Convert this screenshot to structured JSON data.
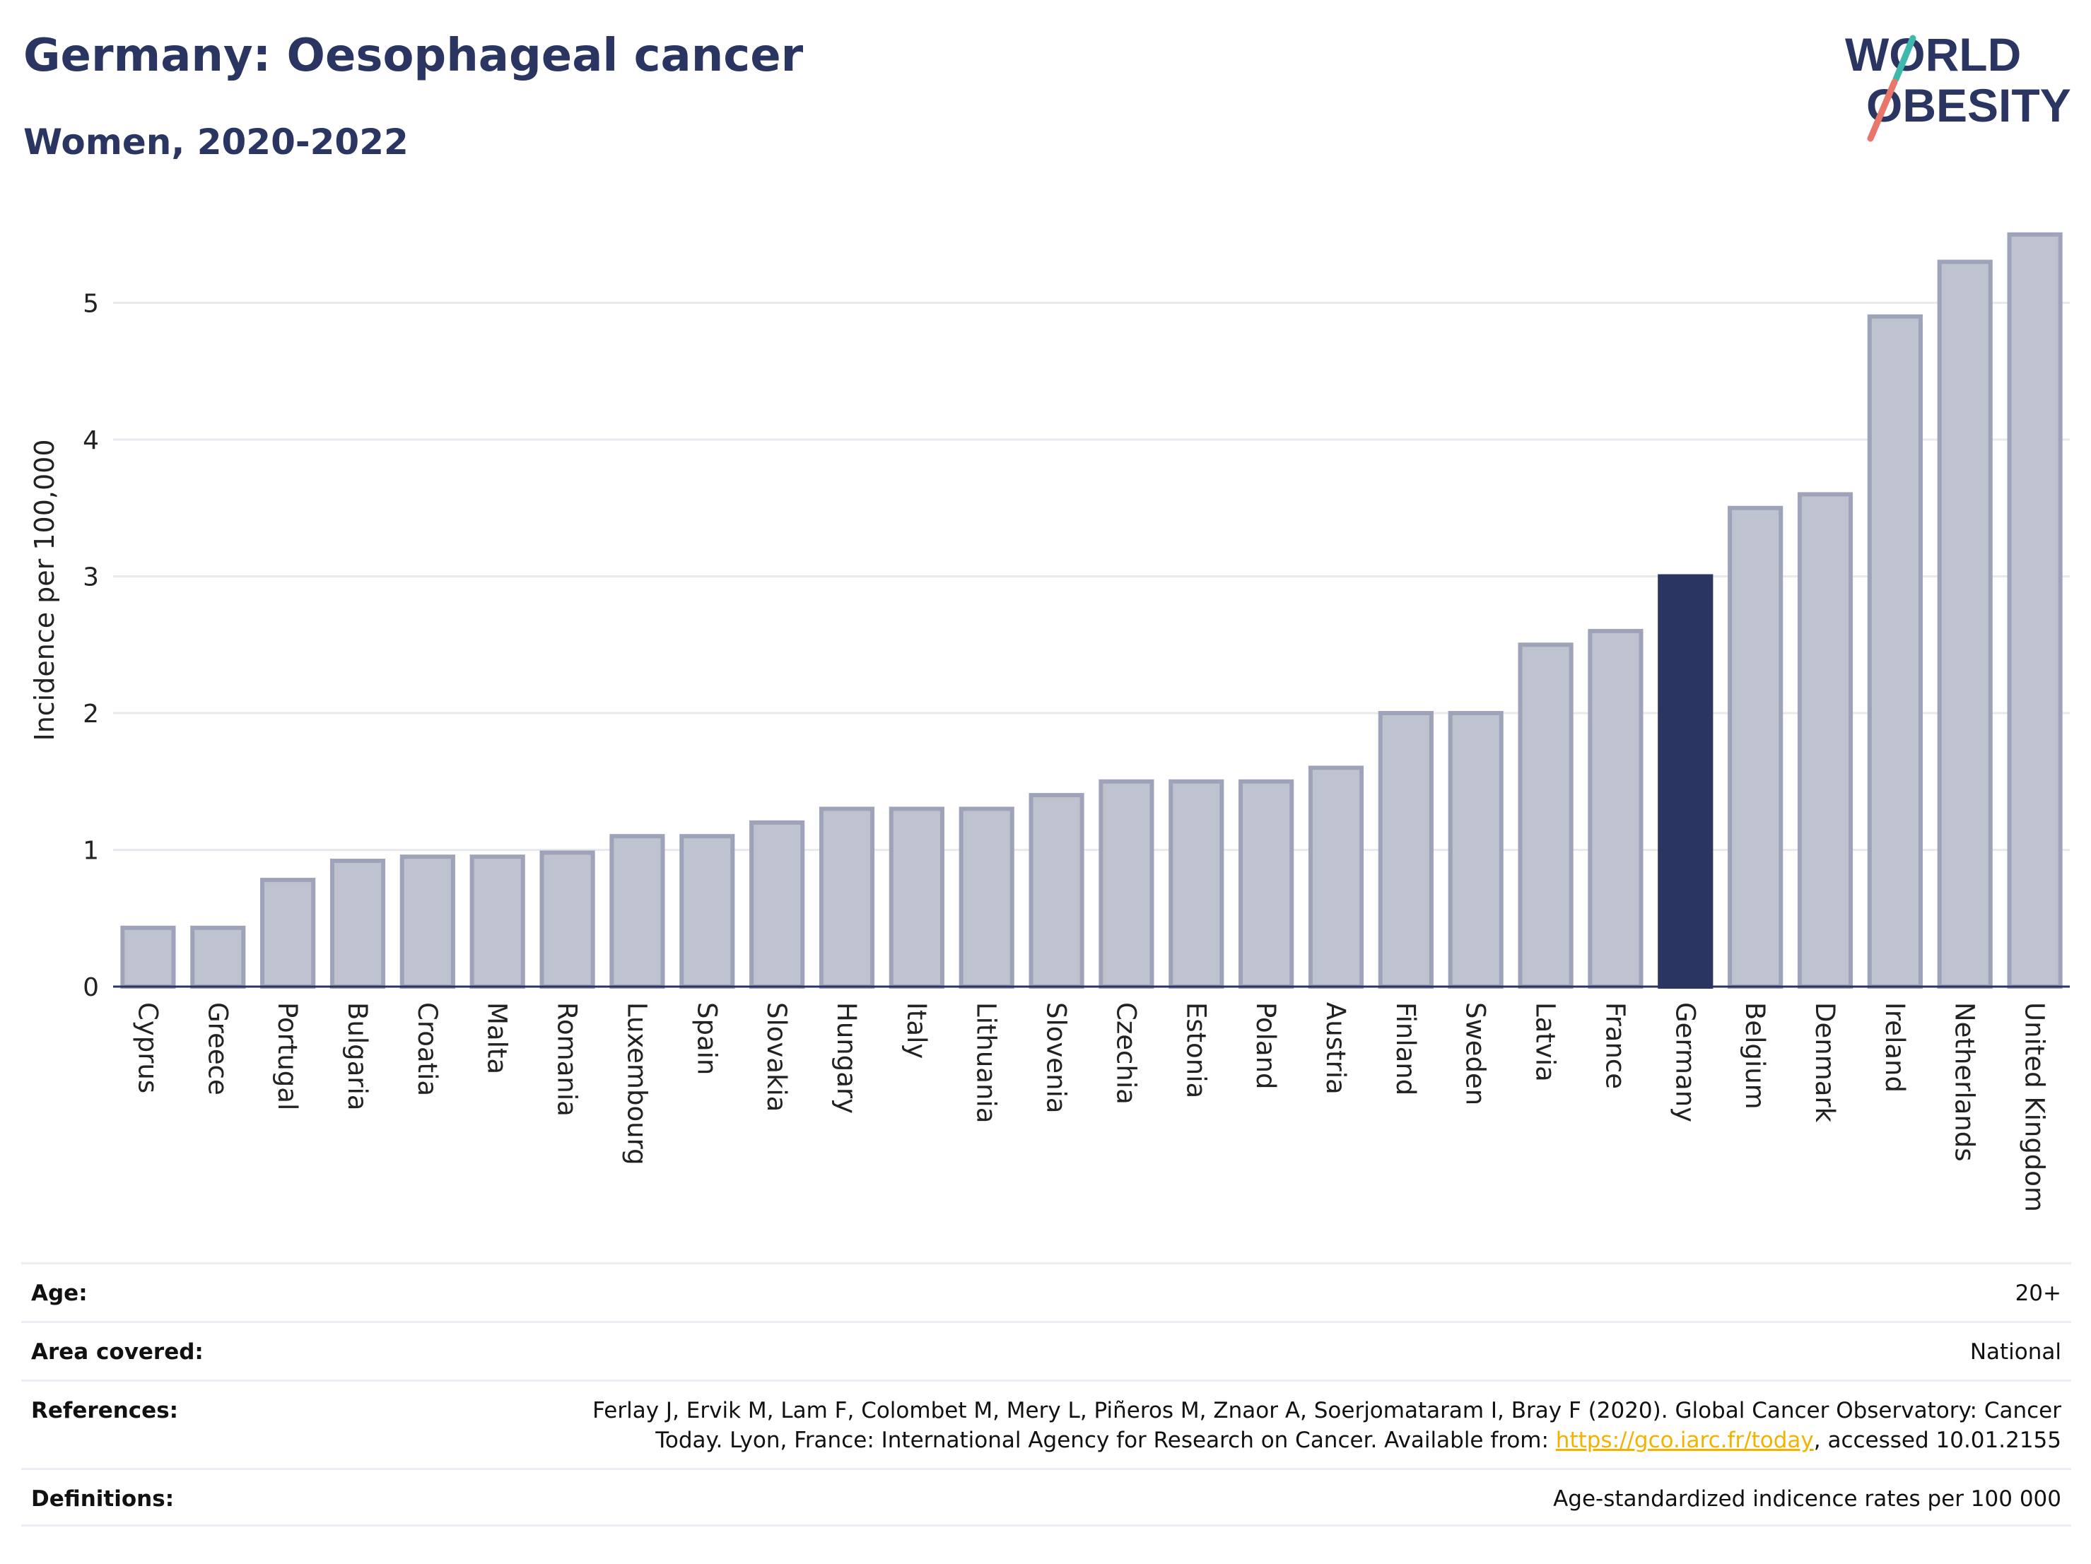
{
  "header": {
    "title": "Germany: Oesophageal cancer",
    "subtitle": "Women, 2020-2022"
  },
  "logo": {
    "line1": "WORLD",
    "line2": "OBESITY"
  },
  "colors": {
    "highlight": "#2a3561",
    "bar_fill": "#bfc2cf",
    "bar_stroke": "#9ea3b9",
    "grid": "#e8e9ee",
    "logo_teal": "#3fb8ae",
    "logo_coral": "#e8766b",
    "link": "#f0b400"
  },
  "chart_data": {
    "type": "bar",
    "title": "Germany: Oesophageal cancer",
    "subtitle": "Women, 2020-2022",
    "ylabel": "Incidence per 100,000",
    "xlabel": "",
    "ylim": [
      0,
      5.6
    ],
    "yticks": [
      0,
      1,
      2,
      3,
      4,
      5
    ],
    "grid": true,
    "highlight": "Germany",
    "categories": [
      "Cyprus",
      "Greece",
      "Portugal",
      "Bulgaria",
      "Croatia",
      "Malta",
      "Romania",
      "Luxembourg",
      "Spain",
      "Slovakia",
      "Hungary",
      "Italy",
      "Lithuania",
      "Slovenia",
      "Czechia",
      "Estonia",
      "Poland",
      "Austria",
      "Finland",
      "Sweden",
      "Latvia",
      "France",
      "Germany",
      "Belgium",
      "Denmark",
      "Ireland",
      "Netherlands",
      "United Kingdom"
    ],
    "values": [
      0.43,
      0.43,
      0.78,
      0.92,
      0.95,
      0.95,
      0.98,
      1.1,
      1.1,
      1.2,
      1.3,
      1.3,
      1.3,
      1.4,
      1.5,
      1.5,
      1.5,
      1.6,
      2.0,
      2.0,
      2.5,
      2.6,
      3.0,
      3.5,
      3.6,
      4.9,
      5.3,
      5.5
    ]
  },
  "meta": {
    "rows": [
      {
        "label": "Age:",
        "value": "20+"
      },
      {
        "label": "Area covered:",
        "value": "National"
      },
      {
        "label": "References:",
        "value_line1": "Ferlay J, Ervik M, Lam F, Colombet M, Mery L, Piñeros M, Znaor A, Soerjomataram I, Bray F (2020). Global Cancer Observatory: Cancer",
        "value_line2_pre": "Today. Lyon, France: International Agency for Research on Cancer. Available from: ",
        "link_text": "https://gco.iarc.fr/today",
        "value_line2_post": ", accessed 10.01.2155"
      },
      {
        "label": "Definitions:",
        "value": "Age-standardized indicence rates per 100 000"
      }
    ]
  }
}
